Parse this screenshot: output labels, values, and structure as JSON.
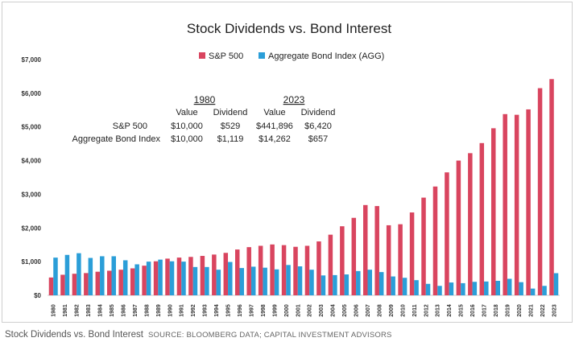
{
  "chart_data": {
    "type": "bar",
    "title": "Stock Dividends vs. Bond Interest",
    "xlabel": "",
    "ylabel": "",
    "ylim": [
      0,
      7000
    ],
    "yticks": [
      0,
      1000,
      2000,
      3000,
      4000,
      5000,
      6000,
      7000
    ],
    "ytick_labels": [
      "$0",
      "$1,000",
      "$2,000",
      "$3,000",
      "$4,000",
      "$5,000",
      "$6,000",
      "$7,000"
    ],
    "legend_position": "top-center",
    "grid": false,
    "categories": [
      "1980",
      "1981",
      "1982",
      "1983",
      "1984",
      "1985",
      "1986",
      "1987",
      "1988",
      "1989",
      "1990",
      "1991",
      "1992",
      "1993",
      "1994",
      "1995",
      "1996",
      "1997",
      "1998",
      "1999",
      "2000",
      "2001",
      "2002",
      "2003",
      "2004",
      "2005",
      "2006",
      "2007",
      "2008",
      "2009",
      "2010",
      "2011",
      "2012",
      "2013",
      "2014",
      "2015",
      "2016",
      "2017",
      "2018",
      "2019",
      "2020",
      "2021",
      "2022",
      "2023"
    ],
    "series": [
      {
        "name": "S&P 500",
        "color": "#d9455f",
        "values": [
          529,
          610,
          640,
          660,
          700,
          730,
          760,
          800,
          880,
          1010,
          1090,
          1120,
          1140,
          1170,
          1210,
          1260,
          1360,
          1430,
          1470,
          1510,
          1490,
          1440,
          1470,
          1600,
          1800,
          2050,
          2300,
          2680,
          2650,
          2080,
          2110,
          2460,
          2900,
          3230,
          3650,
          4000,
          4220,
          4520,
          4960,
          5380,
          5360,
          5520,
          6150,
          6420
        ]
      },
      {
        "name": "Aggregate Bond Index (AGG)",
        "color": "#2b9ed8",
        "values": [
          1119,
          1200,
          1250,
          1110,
          1160,
          1160,
          1040,
          920,
          1000,
          1060,
          1010,
          1000,
          840,
          840,
          760,
          990,
          810,
          850,
          820,
          770,
          900,
          860,
          760,
          590,
          600,
          620,
          720,
          760,
          690,
          560,
          520,
          450,
          340,
          280,
          380,
          360,
          400,
          410,
          430,
          490,
          390,
          200,
          280,
          657
        ]
      }
    ],
    "annotation_table": {
      "years": [
        "1980",
        "2023"
      ],
      "columns": [
        "Value",
        "Dividend",
        "Value",
        "Dividend"
      ],
      "rows": [
        {
          "label": "S&P 500",
          "cells": [
            "$10,000",
            "$529",
            "$441,896",
            "$6,420"
          ]
        },
        {
          "label": "Aggregate Bond Index",
          "cells": [
            "$10,000",
            "$1,119",
            "$14,262",
            "$657"
          ]
        }
      ]
    }
  },
  "caption": {
    "title": "Stock Dividends vs. Bond Interest",
    "source": "SOURCE: BLOOMBERG DATA; CAPITAL INVESTMENT ADVISORS"
  }
}
